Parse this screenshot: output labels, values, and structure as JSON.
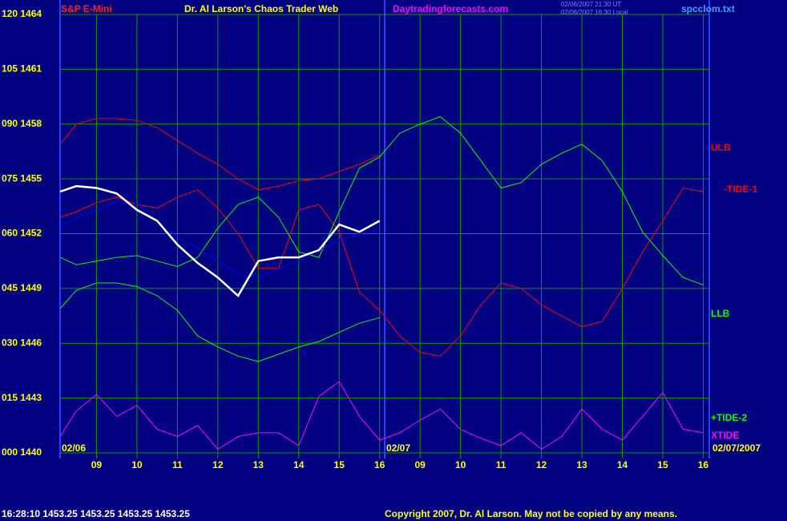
{
  "chart_data": {
    "type": "line",
    "title": "Dr. Al Larson's Chaos Trader Web",
    "instrument": "S&P E-Mini",
    "site": "Daytradingforecasts.com",
    "file": "spcclom.txt",
    "timestamps": [
      "02/06/2007 21:30 UT",
      "02/06/2007 16:30 Local"
    ],
    "status": "16:28:10  1453.25 1453.25 1453.25 1453.25",
    "copyright": "Copyright 2007, Dr. Al Larson. May not be copied by any means.",
    "date_labels": [
      "02/06",
      "02/07",
      "02/07/2007"
    ],
    "x": [
      0.1,
      0.5,
      1,
      1.5,
      2,
      2.5,
      3,
      3.5,
      4,
      4.5,
      5,
      5.5,
      6,
      6.5,
      7,
      7.5,
      8,
      8.5,
      9,
      9.5,
      10,
      10.5,
      11,
      11.5,
      12,
      12.5,
      13,
      13.5,
      14,
      14.5,
      15,
      15.5,
      16
    ],
    "xlim": [
      0.1,
      16.15
    ],
    "xticks": [
      {
        "value": 1,
        "label": "09"
      },
      {
        "value": 2,
        "label": "10"
      },
      {
        "value": 3,
        "label": "11"
      },
      {
        "value": 4,
        "label": "12"
      },
      {
        "value": 5,
        "label": "13"
      },
      {
        "value": 6,
        "label": "14"
      },
      {
        "value": 7,
        "label": "15"
      },
      {
        "value": 8,
        "label": "16"
      },
      {
        "value": 9,
        "label": "09"
      },
      {
        "value": 10,
        "label": "10"
      },
      {
        "value": 11,
        "label": "11"
      },
      {
        "value": 12,
        "label": "12"
      },
      {
        "value": 13,
        "label": "13"
      },
      {
        "value": 14,
        "label": "14"
      },
      {
        "value": 15,
        "label": "15"
      },
      {
        "value": 16,
        "label": "16"
      }
    ],
    "ylim": [
      1440,
      1464
    ],
    "yticks": [
      {
        "value": 1440,
        "label": "000 1440"
      },
      {
        "value": 1443,
        "label": "015 1443"
      },
      {
        "value": 1446,
        "label": "030 1446"
      },
      {
        "value": 1449,
        "label": "045 1449"
      },
      {
        "value": 1452,
        "label": "060 1452"
      },
      {
        "value": 1455,
        "label": "075 1455"
      },
      {
        "value": 1458,
        "label": "090 1458"
      },
      {
        "value": 1461,
        "label": "105 1461"
      },
      {
        "value": 1464,
        "label": "120 1464"
      }
    ],
    "grid": true,
    "series": [
      {
        "name": "ULB",
        "color": "#ff0000",
        "values": [
          1456.9,
          1458.0,
          1458.3,
          1458.3,
          1458.2,
          1457.8,
          1457.1,
          1456.4,
          1455.8,
          1455.0,
          1454.4,
          1454.6,
          1454.9,
          1455.0,
          1455.4,
          1455.8,
          1456.3,
          null,
          null,
          null,
          null,
          null,
          null,
          null,
          null,
          null,
          null,
          null,
          null,
          null,
          null,
          null,
          null
        ]
      },
      {
        "name": "-TIDE-1",
        "color": "#ff0000",
        "values": [
          1452.9,
          1453.2,
          1453.7,
          1454.0,
          1453.6,
          1453.4,
          1454.0,
          1454.4,
          1453.4,
          1452.0,
          1450.1,
          1450.1,
          1453.3,
          1453.6,
          1452.1,
          1448.8,
          1447.8,
          1446.4,
          1445.5,
          1445.3,
          1446.4,
          1448.1,
          1449.3,
          1449.0,
          1448.1,
          1447.5,
          1446.9,
          1447.2,
          1449.0,
          1451.0,
          1452.7,
          1454.5,
          1454.3
        ]
      },
      {
        "name": "LLB",
        "color": "#00ff00",
        "values": [
          1447.9,
          1448.9,
          1449.3,
          1449.3,
          1449.1,
          1448.6,
          1447.8,
          1446.4,
          1445.8,
          1445.3,
          1445.0,
          1445.4,
          1445.8,
          1446.1,
          1446.6,
          1447.1,
          1447.4,
          null,
          null,
          null,
          null,
          null,
          null,
          null,
          null,
          null,
          null,
          null,
          null,
          null,
          null,
          null,
          null
        ]
      },
      {
        "name": "+TIDE-2",
        "color": "#00ff00",
        "values": [
          1450.7,
          1450.3,
          1450.5,
          1450.7,
          1450.8,
          1450.5,
          1450.2,
          1450.7,
          1452.3,
          1453.6,
          1454.0,
          1452.9,
          1451.0,
          1450.7,
          1453.2,
          1455.6,
          1456.2,
          1457.5,
          1458.0,
          1458.4,
          1457.5,
          1456.0,
          1454.5,
          1454.8,
          1455.8,
          1456.4,
          1456.9,
          1456.0,
          1454.3,
          1452.1,
          1450.8,
          1449.6,
          1449.2
        ]
      },
      {
        "name": "XTIDE",
        "color": "#ff00ff",
        "values": [
          1440.9,
          1442.3,
          1443.2,
          1442.0,
          1442.6,
          1441.3,
          1440.9,
          1441.5,
          1440.2,
          1440.9,
          1441.1,
          1441.1,
          1440.4,
          1443.1,
          1443.9,
          1442.0,
          1440.7,
          1441.1,
          1441.8,
          1442.4,
          1441.3,
          1440.8,
          1440.4,
          1441.1,
          1440.2,
          1440.9,
          1442.4,
          1441.3,
          1440.7,
          1442.0,
          1443.3,
          1441.3,
          1441.1
        ]
      },
      {
        "color": "#0000ff",
        "values": [
          1452.4,
          1452.9,
          1453.3,
          1453.8,
          1453.6,
          1452.7,
          1451.8,
          1451.2,
          1450.5,
          1449.8,
          1449.6,
          1450.1,
          1450.5,
          1451.1,
          1451.6,
          1452.0,
          1452.2,
          null,
          null,
          null,
          null,
          null,
          null,
          null,
          null,
          null,
          null,
          null,
          null,
          null,
          null,
          null,
          null
        ]
      },
      {
        "color": "#ffffff",
        "values": [
          1454.3,
          1454.6,
          1454.5,
          1454.2,
          1453.3,
          1452.7,
          1451.4,
          1450.4,
          1449.6,
          1448.6,
          1450.5,
          1450.7,
          1450.7,
          1451.1,
          1452.5,
          1452.1,
          1452.7,
          null,
          null,
          null,
          null,
          null,
          null,
          null,
          null,
          null,
          null,
          null,
          null,
          null,
          null,
          null,
          null
        ]
      }
    ]
  }
}
